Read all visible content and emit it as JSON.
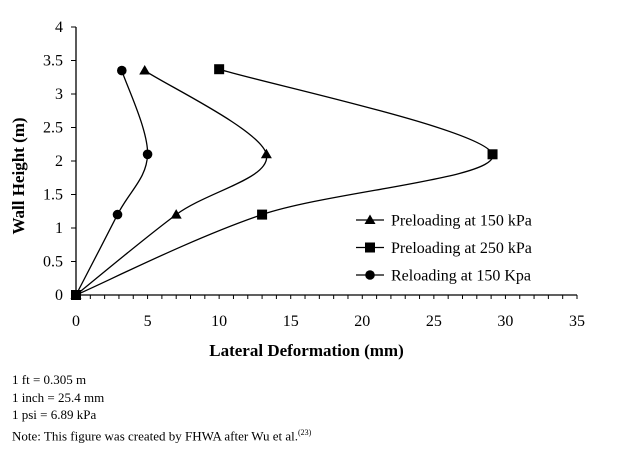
{
  "chart_data": {
    "type": "line",
    "title": "",
    "xlabel": "Lateral Deformation (mm)",
    "ylabel": "Wall Height (m)",
    "xlim": [
      0,
      35
    ],
    "ylim": [
      0,
      4
    ],
    "xticks": [
      0,
      5,
      10,
      15,
      20,
      25,
      30,
      35
    ],
    "yticks": [
      0,
      0.5,
      1,
      1.5,
      2,
      2.5,
      3,
      3.5,
      4
    ],
    "grid": false,
    "legend_position": "bottom-right",
    "smoothed": true,
    "series": [
      {
        "name": "Preloading at 150 kPa",
        "marker": "triangle",
        "color": "#000000",
        "points": [
          [
            0,
            0
          ],
          [
            7,
            1.2
          ],
          [
            13.3,
            2.1
          ],
          [
            4.8,
            3.35
          ]
        ]
      },
      {
        "name": "Preloading at 250 kPa",
        "marker": "square",
        "color": "#000000",
        "points": [
          [
            0,
            0
          ],
          [
            13,
            1.2
          ],
          [
            29.1,
            2.1
          ],
          [
            10,
            3.37
          ]
        ]
      },
      {
        "name": "Reloading at 150 Kpa",
        "marker": "circle",
        "color": "#000000",
        "points": [
          [
            0,
            0
          ],
          [
            2.9,
            1.2
          ],
          [
            5,
            2.1
          ],
          [
            3.2,
            3.35
          ]
        ]
      }
    ]
  },
  "notes": {
    "line1": "1 ft = 0.305 m",
    "line2": "1 inch = 25.4 mm",
    "line3": "1 psi = 6.89 kPa",
    "line4": "Note: This figure was created by FHWA after Wu et al.",
    "line4_ref": "(23)"
  }
}
